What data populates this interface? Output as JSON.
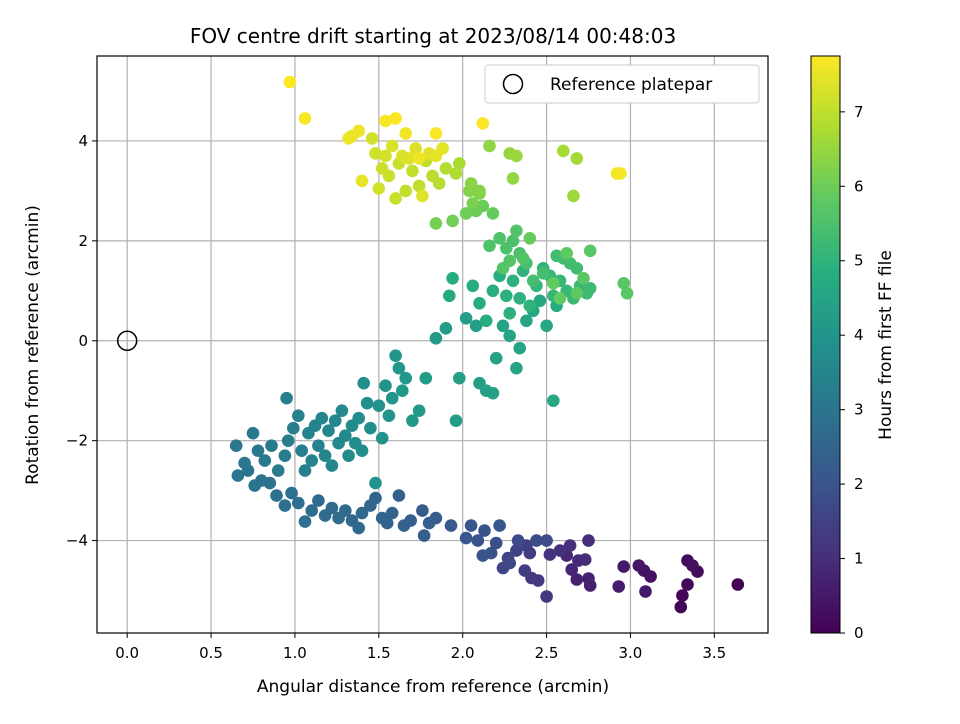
{
  "chart_data": {
    "type": "scatter",
    "title": "FOV centre drift starting at 2023/08/14 00:48:03",
    "xlabel": "Angular distance from reference (arcmin)",
    "ylabel": "Rotation from reference (arcmin)",
    "xlim": [
      -0.18,
      3.82
    ],
    "ylim": [
      -5.85,
      5.7
    ],
    "xticks": [
      "0.0",
      "0.5",
      "1.0",
      "1.5",
      "2.0",
      "2.5",
      "3.0",
      "3.5"
    ],
    "xtick_values": [
      0,
      0.5,
      1.0,
      1.5,
      2.0,
      2.5,
      3.0,
      3.5
    ],
    "yticks": [
      "−4",
      "−2",
      "0",
      "2",
      "4"
    ],
    "ytick_values": [
      -4,
      -2,
      0,
      2,
      4
    ],
    "grid": true,
    "legend": {
      "position": "top-right",
      "label": "Reference platepar"
    },
    "reference_point": {
      "x": 0.0,
      "y": 0.0
    },
    "colorbar": {
      "label": "Hours from first FF file",
      "colormap": "viridis",
      "range": [
        0,
        7.75
      ],
      "ticks": [
        "0",
        "1",
        "2",
        "3",
        "4",
        "5",
        "6",
        "7"
      ],
      "tick_values": [
        0,
        1,
        2,
        3,
        4,
        5,
        6,
        7
      ]
    },
    "points": [
      [
        3.64,
        -4.88,
        0.0
      ],
      [
        3.3,
        -5.33,
        0.08
      ],
      [
        3.31,
        -5.1,
        0.12
      ],
      [
        3.34,
        -4.88,
        0.16
      ],
      [
        3.4,
        -4.62,
        0.2
      ],
      [
        3.34,
        -4.4,
        0.25
      ],
      [
        3.37,
        -4.5,
        0.3
      ],
      [
        3.12,
        -4.72,
        0.35
      ],
      [
        3.08,
        -4.6,
        0.4
      ],
      [
        3.05,
        -4.5,
        0.45
      ],
      [
        2.96,
        -4.52,
        0.5
      ],
      [
        3.09,
        -5.02,
        0.55
      ],
      [
        2.93,
        -4.92,
        0.6
      ],
      [
        2.76,
        -4.9,
        0.65
      ],
      [
        2.75,
        -4.76,
        0.7
      ],
      [
        2.68,
        -4.78,
        0.75
      ],
      [
        2.65,
        -4.58,
        0.8
      ],
      [
        2.62,
        -4.3,
        0.85
      ],
      [
        2.69,
        -4.4,
        0.9
      ],
      [
        2.73,
        -4.38,
        0.95
      ],
      [
        2.75,
        -4.0,
        1.0
      ],
      [
        2.64,
        -4.1,
        1.05
      ],
      [
        2.58,
        -4.2,
        1.1
      ],
      [
        2.52,
        -4.28,
        1.15
      ],
      [
        2.5,
        -5.12,
        1.2
      ],
      [
        2.45,
        -4.8,
        1.25
      ],
      [
        2.41,
        -4.75,
        1.3
      ],
      [
        2.37,
        -4.6,
        1.35
      ],
      [
        2.4,
        -4.25,
        1.4
      ],
      [
        2.38,
        -4.1,
        1.45
      ],
      [
        2.32,
        -4.2,
        1.5
      ],
      [
        2.27,
        -4.35,
        1.55
      ],
      [
        2.24,
        -4.55,
        1.6
      ],
      [
        2.28,
        -4.45,
        1.65
      ],
      [
        2.33,
        -4.0,
        1.7
      ],
      [
        2.44,
        -4.0,
        1.75
      ],
      [
        2.5,
        -4.0,
        1.8
      ],
      [
        2.2,
        -4.05,
        1.85
      ],
      [
        2.17,
        -4.25,
        1.9
      ],
      [
        2.12,
        -4.3,
        1.95
      ],
      [
        2.09,
        -4.0,
        2.0
      ],
      [
        2.13,
        -3.8,
        2.0
      ],
      [
        2.05,
        -3.7,
        2.05
      ],
      [
        2.02,
        -3.95,
        2.1
      ],
      [
        2.22,
        -3.7,
        2.1
      ],
      [
        1.93,
        -3.7,
        2.15
      ],
      [
        1.84,
        -3.55,
        2.2
      ],
      [
        1.76,
        -3.4,
        2.25
      ],
      [
        1.8,
        -3.65,
        2.3
      ],
      [
        1.77,
        -3.9,
        2.3
      ],
      [
        1.69,
        -3.6,
        2.35
      ],
      [
        1.65,
        -3.7,
        2.4
      ],
      [
        1.62,
        -3.1,
        2.4
      ],
      [
        1.58,
        -3.45,
        2.45
      ],
      [
        1.55,
        -3.65,
        2.45
      ],
      [
        1.52,
        -3.55,
        2.5
      ],
      [
        1.48,
        -3.15,
        2.5
      ],
      [
        1.45,
        -3.3,
        2.55
      ],
      [
        1.4,
        -3.45,
        2.55
      ],
      [
        1.38,
        -3.75,
        2.6
      ],
      [
        1.34,
        -3.6,
        2.6
      ],
      [
        1.3,
        -3.4,
        2.65
      ],
      [
        1.26,
        -3.55,
        2.65
      ],
      [
        1.22,
        -3.35,
        2.7
      ],
      [
        1.18,
        -3.5,
        2.7
      ],
      [
        1.14,
        -3.2,
        2.75
      ],
      [
        1.1,
        -3.4,
        2.75
      ],
      [
        1.06,
        -3.62,
        2.8
      ],
      [
        1.02,
        -3.25,
        2.8
      ],
      [
        0.98,
        -3.05,
        2.85
      ],
      [
        0.94,
        -3.3,
        2.85
      ],
      [
        0.89,
        -3.1,
        2.9
      ],
      [
        0.85,
        -2.85,
        2.9
      ],
      [
        0.8,
        -2.8,
        2.95
      ],
      [
        0.76,
        -2.9,
        2.95
      ],
      [
        0.72,
        -2.6,
        3.0
      ],
      [
        0.66,
        -2.7,
        3.0
      ],
      [
        0.7,
        -2.45,
        3.05
      ],
      [
        0.65,
        -2.1,
        3.05
      ],
      [
        0.78,
        -2.2,
        3.1
      ],
      [
        0.75,
        -1.85,
        3.1
      ],
      [
        0.82,
        -2.4,
        3.15
      ],
      [
        0.86,
        -2.1,
        3.15
      ],
      [
        0.9,
        -2.6,
        3.2
      ],
      [
        0.94,
        -2.3,
        3.2
      ],
      [
        0.96,
        -2.0,
        3.25
      ],
      [
        0.99,
        -1.75,
        3.25
      ],
      [
        0.95,
        -1.15,
        3.3
      ],
      [
        1.02,
        -1.5,
        3.3
      ],
      [
        1.04,
        -2.2,
        3.35
      ],
      [
        1.06,
        -2.6,
        3.35
      ],
      [
        1.08,
        -1.85,
        3.4
      ],
      [
        1.1,
        -2.4,
        3.4
      ],
      [
        1.12,
        -1.7,
        3.45
      ],
      [
        1.14,
        -2.1,
        3.45
      ],
      [
        1.16,
        -1.55,
        3.5
      ],
      [
        1.18,
        -2.3,
        3.5
      ],
      [
        1.2,
        -1.8,
        3.55
      ],
      [
        1.22,
        -2.5,
        3.55
      ],
      [
        1.24,
        -1.6,
        3.6
      ],
      [
        1.26,
        -2.05,
        3.6
      ],
      [
        1.28,
        -1.4,
        3.65
      ],
      [
        1.3,
        -1.9,
        3.65
      ],
      [
        1.32,
        -2.3,
        3.7
      ],
      [
        1.34,
        -1.7,
        3.7
      ],
      [
        1.36,
        -2.05,
        3.75
      ],
      [
        1.38,
        -1.55,
        3.75
      ],
      [
        1.4,
        -2.2,
        3.8
      ],
      [
        1.41,
        -0.85,
        3.8
      ],
      [
        1.43,
        -1.25,
        3.85
      ],
      [
        1.45,
        -1.75,
        3.85
      ],
      [
        1.48,
        -2.85,
        3.9
      ],
      [
        1.5,
        -1.3,
        3.9
      ],
      [
        1.52,
        -1.95,
        3.95
      ],
      [
        1.54,
        -0.9,
        3.95
      ],
      [
        1.56,
        -1.5,
        4.0
      ],
      [
        1.58,
        -1.15,
        4.0
      ],
      [
        1.6,
        -0.3,
        4.05
      ],
      [
        1.62,
        -0.55,
        4.05
      ],
      [
        1.64,
        -1.0,
        4.1
      ],
      [
        1.66,
        -0.75,
        4.1
      ],
      [
        1.7,
        -1.6,
        4.15
      ],
      [
        1.74,
        -1.4,
        4.15
      ],
      [
        1.78,
        -0.75,
        4.2
      ],
      [
        1.84,
        0.05,
        4.2
      ],
      [
        1.9,
        0.25,
        4.25
      ],
      [
        1.96,
        -1.6,
        4.25
      ],
      [
        1.98,
        -0.75,
        4.3
      ],
      [
        2.02,
        0.45,
        4.3
      ],
      [
        2.08,
        0.3,
        4.35
      ],
      [
        2.1,
        -0.85,
        4.35
      ],
      [
        2.14,
        -1.0,
        4.4
      ],
      [
        2.18,
        -1.05,
        4.4
      ],
      [
        2.2,
        -0.35,
        4.45
      ],
      [
        2.24,
        0.3,
        4.45
      ],
      [
        2.28,
        0.1,
        4.5
      ],
      [
        2.32,
        -0.55,
        4.5
      ],
      [
        2.34,
        -0.15,
        4.55
      ],
      [
        2.38,
        0.4,
        4.55
      ],
      [
        2.42,
        0.6,
        4.6
      ],
      [
        2.46,
        0.8,
        4.6
      ],
      [
        2.5,
        0.3,
        4.65
      ],
      [
        2.54,
        -1.2,
        4.65
      ],
      [
        2.56,
        0.7,
        4.7
      ],
      [
        1.92,
        0.9,
        4.7
      ],
      [
        1.94,
        1.25,
        4.75
      ],
      [
        2.06,
        1.1,
        4.75
      ],
      [
        2.1,
        0.75,
        4.8
      ],
      [
        2.14,
        0.4,
        4.8
      ],
      [
        2.18,
        1.0,
        4.85
      ],
      [
        2.22,
        1.3,
        4.85
      ],
      [
        2.26,
        0.9,
        4.9
      ],
      [
        2.28,
        0.55,
        4.9
      ],
      [
        2.3,
        1.2,
        4.95
      ],
      [
        2.34,
        0.85,
        4.95
      ],
      [
        2.36,
        1.4,
        5.0
      ],
      [
        2.4,
        0.7,
        5.0
      ],
      [
        2.44,
        1.1,
        5.05
      ],
      [
        2.48,
        1.45,
        5.05
      ],
      [
        2.52,
        1.3,
        5.1
      ],
      [
        2.54,
        0.9,
        5.1
      ],
      [
        2.58,
        1.2,
        5.15
      ],
      [
        2.62,
        1.0,
        5.15
      ],
      [
        2.66,
        0.85,
        5.2
      ],
      [
        2.7,
        1.1,
        5.2
      ],
      [
        2.74,
        0.95,
        5.25
      ],
      [
        2.76,
        1.05,
        5.25
      ],
      [
        2.68,
        1.45,
        5.3
      ],
      [
        2.6,
        1.65,
        5.3
      ],
      [
        2.64,
        1.55,
        5.35
      ],
      [
        2.56,
        1.7,
        5.35
      ],
      [
        2.48,
        1.35,
        5.4
      ],
      [
        2.42,
        1.2,
        5.4
      ],
      [
        2.38,
        1.55,
        5.45
      ],
      [
        2.34,
        1.75,
        5.45
      ],
      [
        2.3,
        2.0,
        5.5
      ],
      [
        2.26,
        1.85,
        5.5
      ],
      [
        2.22,
        2.05,
        5.55
      ],
      [
        2.16,
        1.9,
        5.55
      ],
      [
        2.32,
        2.2,
        5.6
      ],
      [
        2.36,
        1.65,
        5.6
      ],
      [
        2.28,
        1.6,
        5.65
      ],
      [
        2.24,
        1.45,
        5.65
      ],
      [
        2.98,
        0.95,
        5.7
      ],
      [
        2.96,
        1.15,
        5.7
      ],
      [
        2.76,
        1.8,
        5.75
      ],
      [
        2.72,
        1.25,
        5.75
      ],
      [
        2.68,
        0.95,
        5.8
      ],
      [
        2.62,
        1.75,
        5.8
      ],
      [
        2.58,
        0.85,
        5.85
      ],
      [
        2.54,
        1.15,
        5.85
      ],
      [
        2.4,
        2.05,
        5.9
      ],
      [
        2.18,
        2.55,
        5.9
      ],
      [
        2.12,
        2.7,
        5.95
      ],
      [
        2.08,
        2.6,
        5.95
      ],
      [
        2.02,
        2.55,
        6.0
      ],
      [
        1.94,
        2.4,
        6.05
      ],
      [
        1.84,
        2.35,
        6.1
      ],
      [
        2.06,
        2.75,
        6.15
      ],
      [
        2.1,
        2.95,
        6.2
      ],
      [
        2.04,
        3.0,
        6.25
      ],
      [
        2.1,
        3.0,
        6.3
      ],
      [
        2.05,
        3.15,
        6.35
      ],
      [
        2.16,
        3.9,
        6.4
      ],
      [
        2.3,
        3.25,
        6.45
      ],
      [
        2.28,
        3.75,
        6.5
      ],
      [
        2.32,
        3.7,
        6.55
      ],
      [
        2.66,
        2.9,
        6.6
      ],
      [
        2.68,
        3.65,
        6.65
      ],
      [
        2.6,
        3.8,
        6.7
      ],
      [
        1.98,
        3.55,
        6.75
      ],
      [
        1.96,
        3.35,
        6.8
      ],
      [
        1.9,
        3.45,
        6.85
      ],
      [
        1.86,
        3.15,
        6.9
      ],
      [
        1.82,
        3.3,
        6.95
      ],
      [
        1.78,
        3.6,
        7.0
      ],
      [
        1.74,
        3.1,
        7.0
      ],
      [
        1.7,
        3.4,
        7.05
      ],
      [
        1.66,
        3.0,
        7.05
      ],
      [
        1.62,
        3.55,
        7.1
      ],
      [
        1.6,
        2.85,
        7.1
      ],
      [
        1.56,
        3.3,
        7.15
      ],
      [
        1.52,
        3.45,
        7.15
      ],
      [
        1.48,
        3.75,
        7.2
      ],
      [
        1.46,
        4.05,
        7.2
      ],
      [
        1.5,
        3.05,
        7.25
      ],
      [
        1.54,
        3.7,
        7.25
      ],
      [
        1.58,
        3.9,
        7.3
      ],
      [
        1.64,
        3.7,
        7.3
      ],
      [
        1.68,
        3.65,
        7.35
      ],
      [
        1.72,
        3.85,
        7.35
      ],
      [
        1.76,
        2.9,
        7.4
      ],
      [
        1.8,
        3.75,
        7.4
      ],
      [
        1.84,
        3.7,
        7.45
      ],
      [
        1.88,
        3.85,
        7.45
      ],
      [
        1.4,
        3.2,
        7.5
      ],
      [
        1.34,
        4.1,
        7.5
      ],
      [
        1.38,
        4.2,
        7.55
      ],
      [
        1.32,
        4.05,
        7.55
      ],
      [
        1.66,
        4.15,
        7.6
      ],
      [
        1.74,
        3.65,
        7.6
      ],
      [
        2.94,
        3.35,
        7.65
      ],
      [
        2.92,
        3.35,
        7.65
      ],
      [
        1.84,
        4.15,
        7.7
      ],
      [
        2.12,
        4.35,
        7.7
      ],
      [
        1.54,
        4.4,
        7.7
      ],
      [
        1.6,
        4.45,
        7.72
      ],
      [
        1.06,
        4.45,
        7.73
      ],
      [
        0.97,
        5.18,
        7.75
      ]
    ]
  }
}
